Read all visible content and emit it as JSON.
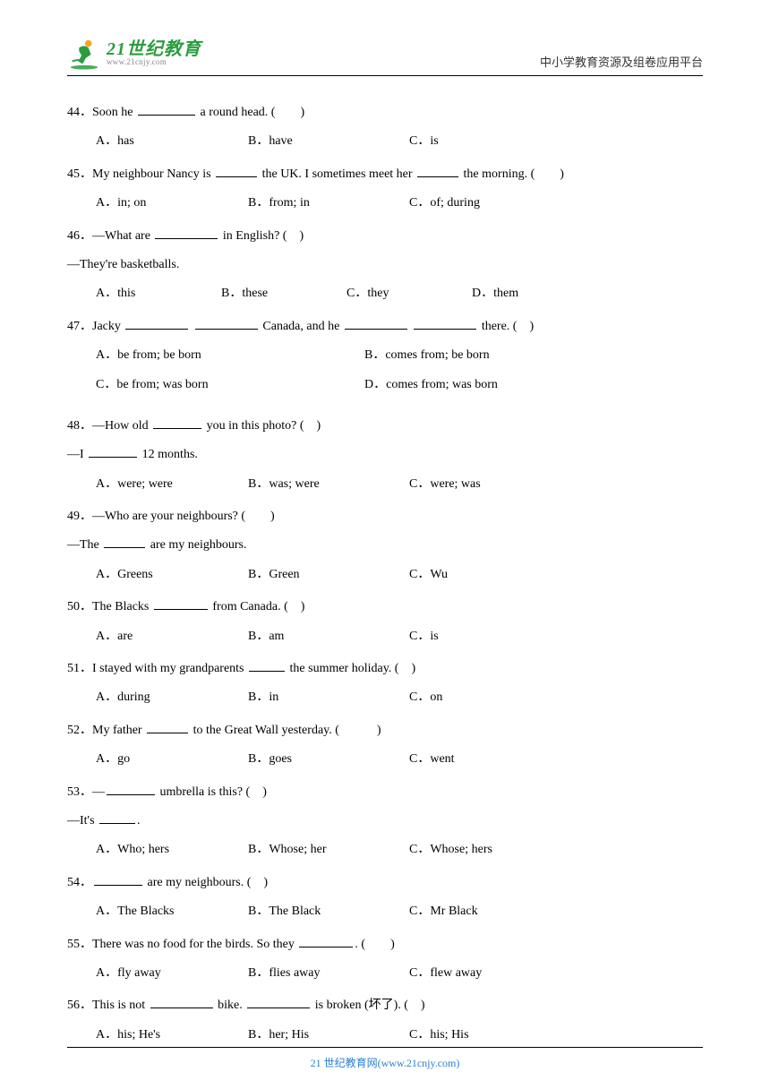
{
  "header": {
    "logo_main": "21世纪教育",
    "logo_url": "www.21cnjy.com",
    "header_right": "中小学教育资源及组卷应用平台"
  },
  "questions": [
    {
      "num": "44",
      "text_pre": "．Soon he ",
      "blank1_w": 64,
      "text_post": " a round head. (　　)",
      "options": [
        {
          "label": "A．",
          "text": "has"
        },
        {
          "label": "B．",
          "text": "have"
        },
        {
          "label": "C．",
          "text": "is"
        }
      ]
    },
    {
      "num": "45",
      "text_pre": "．My neighbour Nancy is ",
      "blank1_w": 46,
      "text_mid": " the UK. I sometimes meet her ",
      "blank2_w": 46,
      "text_post": " the morning. (　　)",
      "options": [
        {
          "label": "A．",
          "text": "in; on"
        },
        {
          "label": "B．",
          "text": "from; in"
        },
        {
          "label": "C．",
          "text": "of; during"
        }
      ]
    },
    {
      "num": "46",
      "text_pre": "．—What are ",
      "blank1_w": 70,
      "text_post": " in English? (　)",
      "continue": "—They're basketballs.",
      "layout": "4col",
      "options": [
        {
          "label": "A．",
          "text": "this"
        },
        {
          "label": "B．",
          "text": "these"
        },
        {
          "label": "C．",
          "text": "they"
        },
        {
          "label": "D．",
          "text": "them"
        }
      ]
    },
    {
      "num": "47",
      "text_pre": "．Jacky ",
      "blank1_w": 70,
      "text_mid1": " ",
      "blank2_w": 70,
      "text_mid2": " Canada, and he ",
      "blank3_w": 70,
      "text_mid3": " ",
      "blank4_w": 70,
      "text_post": " there. (　)",
      "layout": "2col",
      "options": [
        {
          "label": "A．",
          "text": "be from; be born"
        },
        {
          "label": "B．",
          "text": "comes from; be born"
        },
        {
          "label": "C．",
          "text": "be from; was born"
        },
        {
          "label": "D．",
          "text": "comes from; was born"
        }
      ]
    },
    {
      "num": "48",
      "text_pre": "．—How old ",
      "blank1_w": 54,
      "text_post": " you in this photo? (　)",
      "continue_pre": "—I ",
      "continue_blank_w": 54,
      "continue_post": " 12 months.",
      "options": [
        {
          "label": "A．",
          "text": "were; were"
        },
        {
          "label": "B．",
          "text": "was; were"
        },
        {
          "label": "C．",
          "text": "were; was"
        }
      ]
    },
    {
      "num": "49",
      "text_pre": "．—Who are your neighbours? (　　)",
      "continue_pre": "—The ",
      "continue_blank_w": 46,
      "continue_post": " are my neighbours.",
      "options": [
        {
          "label": "A．",
          "text": "Greens"
        },
        {
          "label": "B．",
          "text": "Green"
        },
        {
          "label": "C．",
          "text": "Wu"
        }
      ]
    },
    {
      "num": "50",
      "text_pre": "．The Blacks ",
      "blank1_w": 60,
      "text_post": " from Canada. (　)",
      "options": [
        {
          "label": "A．",
          "text": "are"
        },
        {
          "label": "B．",
          "text": "am"
        },
        {
          "label": "C．",
          "text": "is"
        }
      ]
    },
    {
      "num": "51",
      "text_pre": "．I stayed with my grandparents ",
      "blank1_w": 40,
      "text_post": " the summer holiday. (　)",
      "options": [
        {
          "label": "A．",
          "text": "during"
        },
        {
          "label": "B．",
          "text": "in"
        },
        {
          "label": "C．",
          "text": "on"
        }
      ]
    },
    {
      "num": "52",
      "text_pre": "．My father ",
      "blank1_w": 46,
      "text_post": " to the Great Wall yesterday. (　　　)",
      "options": [
        {
          "label": "A．",
          "text": "go"
        },
        {
          "label": "B．",
          "text": "goes"
        },
        {
          "label": "C．",
          "text": "went"
        }
      ]
    },
    {
      "num": "53",
      "text_pre": "．—",
      "blank1_w": 54,
      "text_post": " umbrella is this? (　)",
      "continue_pre": "—It's ",
      "continue_blank_w": 40,
      "continue_post": ".",
      "options": [
        {
          "label": "A．",
          "text": "Who; hers"
        },
        {
          "label": "B．",
          "text": "Whose; her"
        },
        {
          "label": "C．",
          "text": "Whose; hers"
        }
      ]
    },
    {
      "num": "54",
      "text_pre": "．",
      "blank1_w": 54,
      "text_post": " are my neighbours. (　)",
      "options": [
        {
          "label": "A．",
          "text": "The Blacks"
        },
        {
          "label": "B．",
          "text": "The Black"
        },
        {
          "label": "C．",
          "text": "Mr Black"
        }
      ]
    },
    {
      "num": "55",
      "text_pre": "．There was no food for the birds. So they ",
      "blank1_w": 60,
      "text_post": ". (　　)",
      "options": [
        {
          "label": "A．",
          "text": "fly away"
        },
        {
          "label": "B．",
          "text": "flies away"
        },
        {
          "label": "C．",
          "text": "flew away"
        }
      ]
    },
    {
      "num": "56",
      "text_pre": "．This is not ",
      "blank1_w": 70,
      "text_mid": " bike. ",
      "blank2_w": 70,
      "text_post": " is broken (坏了). (　)",
      "options": [
        {
          "label": "A．",
          "text": "his; He's"
        },
        {
          "label": "B．",
          "text": "her; His"
        },
        {
          "label": "C．",
          "text": "his; His"
        }
      ]
    }
  ],
  "footer": {
    "text": "21 世纪教育网(www.21cnjy.com)"
  },
  "colors": {
    "logo_green": "#2a9d3f",
    "logo_orange": "#f5a623",
    "footer_blue": "#2a7fd4",
    "text": "#000000",
    "bg": "#ffffff"
  }
}
